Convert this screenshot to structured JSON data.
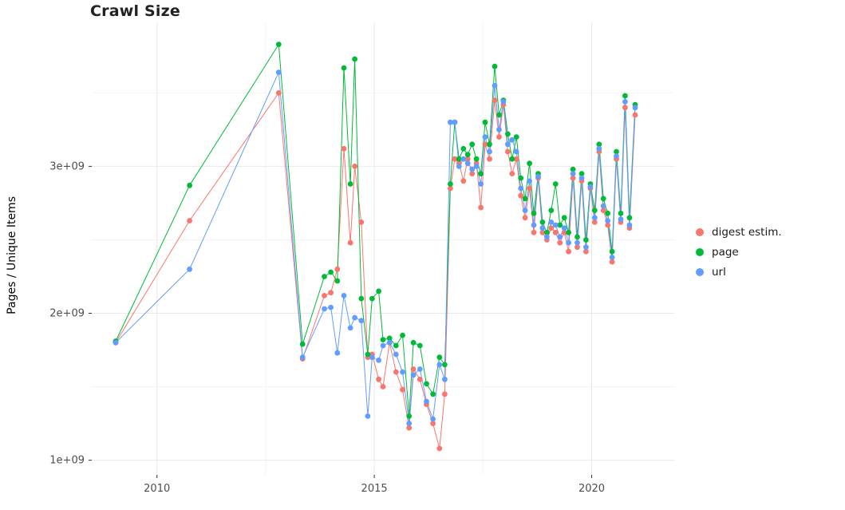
{
  "chart": {
    "title": "Crawl Size",
    "ylabel": "Pages / Unique Items"
  },
  "chart_data": {
    "type": "line",
    "title": "Crawl Size",
    "xlabel": "",
    "ylabel": "Pages / Unique Items",
    "grid": true,
    "legend_position": "right",
    "y_unit": "pages, values in billions (1e9)",
    "xlim": [
      2008.5,
      2021.9
    ],
    "ylim": [
      0.9,
      3.98
    ],
    "x_ticks": [
      2010,
      2015,
      2020
    ],
    "x_tick_labels": [
      "2010",
      "2015",
      "2020"
    ],
    "x_minor": [
      2012.5,
      2017.5
    ],
    "y_ticks": [
      1,
      2,
      3
    ],
    "y_tick_labels": [
      "1e+09",
      "2e+09",
      "3e+09"
    ],
    "y_minor": [
      1.5,
      2.5,
      3.5
    ],
    "x": [
      2009.05,
      2010.75,
      2012.8,
      2013.35,
      2013.85,
      2014.0,
      2014.15,
      2014.3,
      2014.45,
      2014.55,
      2014.7,
      2014.85,
      2014.95,
      2015.1,
      2015.2,
      2015.35,
      2015.5,
      2015.65,
      2015.8,
      2015.9,
      2016.05,
      2016.2,
      2016.35,
      2016.5,
      2016.62,
      2016.75,
      2016.85,
      2016.95,
      2017.05,
      2017.15,
      2017.25,
      2017.35,
      2017.45,
      2017.55,
      2017.65,
      2017.77,
      2017.87,
      2017.97,
      2018.07,
      2018.17,
      2018.27,
      2018.37,
      2018.47,
      2018.57,
      2018.67,
      2018.77,
      2018.87,
      2018.97,
      2019.07,
      2019.17,
      2019.27,
      2019.37,
      2019.47,
      2019.57,
      2019.67,
      2019.77,
      2019.87,
      2019.97,
      2020.07,
      2020.17,
      2020.27,
      2020.37,
      2020.47,
      2020.57,
      2020.67,
      2020.77,
      2020.87,
      2021.0
    ],
    "series": [
      {
        "name": "digest estim.",
        "color": "#F8766D",
        "values": [
          1.8,
          2.63,
          3.5,
          1.69,
          2.12,
          2.14,
          2.3,
          3.12,
          2.48,
          3.0,
          2.62,
          1.7,
          1.72,
          1.55,
          1.5,
          1.8,
          1.6,
          1.48,
          1.22,
          1.62,
          1.55,
          1.38,
          1.25,
          1.08,
          1.45,
          2.85,
          3.05,
          3.02,
          2.9,
          3.05,
          2.95,
          3.02,
          2.72,
          3.15,
          3.05,
          3.45,
          3.2,
          3.42,
          3.1,
          2.95,
          3.05,
          2.8,
          2.65,
          2.85,
          2.55,
          2.92,
          2.55,
          2.5,
          2.58,
          2.55,
          2.48,
          2.55,
          2.42,
          2.92,
          2.45,
          2.9,
          2.42,
          2.85,
          2.62,
          3.1,
          2.7,
          2.6,
          2.35,
          3.05,
          2.62,
          3.4,
          2.58,
          3.35
        ]
      },
      {
        "name": "page",
        "color": "#00BA38",
        "values": [
          1.81,
          2.87,
          3.83,
          1.79,
          2.25,
          2.28,
          2.22,
          3.67,
          2.88,
          3.73,
          2.1,
          1.72,
          2.1,
          2.15,
          1.82,
          1.83,
          1.78,
          1.85,
          1.3,
          1.8,
          1.78,
          1.52,
          1.45,
          1.7,
          1.65,
          2.88,
          3.3,
          3.05,
          3.12,
          3.08,
          3.15,
          3.05,
          2.95,
          3.3,
          3.15,
          3.68,
          3.35,
          3.45,
          3.22,
          3.05,
          3.2,
          2.92,
          2.78,
          3.02,
          2.68,
          2.95,
          2.62,
          2.55,
          2.7,
          2.88,
          2.6,
          2.65,
          2.55,
          2.98,
          2.52,
          2.95,
          2.5,
          2.88,
          2.7,
          3.15,
          2.78,
          2.68,
          2.42,
          3.1,
          2.68,
          3.48,
          2.65,
          3.42
        ]
      },
      {
        "name": "url",
        "color": "#619CFF",
        "values": [
          1.8,
          2.3,
          3.64,
          1.7,
          2.03,
          2.04,
          1.73,
          2.12,
          1.9,
          1.97,
          1.95,
          1.3,
          1.7,
          1.68,
          1.78,
          1.8,
          1.72,
          1.6,
          1.25,
          1.58,
          1.62,
          1.4,
          1.28,
          1.65,
          1.55,
          3.3,
          3.3,
          3.0,
          3.05,
          3.02,
          2.98,
          3.0,
          2.88,
          3.2,
          3.1,
          3.55,
          3.25,
          3.44,
          3.15,
          3.18,
          3.1,
          2.85,
          2.7,
          2.9,
          2.6,
          2.93,
          2.58,
          2.52,
          2.62,
          2.6,
          2.52,
          2.58,
          2.48,
          2.95,
          2.48,
          2.92,
          2.45,
          2.86,
          2.65,
          3.12,
          2.73,
          2.63,
          2.38,
          3.07,
          2.64,
          3.44,
          2.6,
          3.4
        ]
      }
    ]
  }
}
